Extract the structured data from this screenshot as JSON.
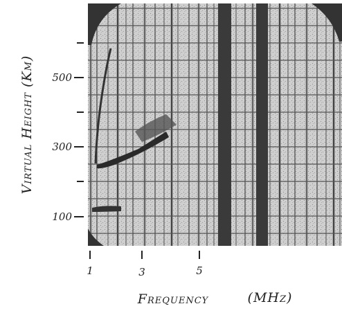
{
  "figure": {
    "y_axis": {
      "label": "Virtual Height (Km)",
      "ticks": [
        "500",
        "300",
        "100"
      ]
    },
    "x_axis": {
      "label": "Frequency",
      "unit": "(MHz)",
      "ticks": [
        "1",
        "3",
        "5"
      ]
    }
  }
}
